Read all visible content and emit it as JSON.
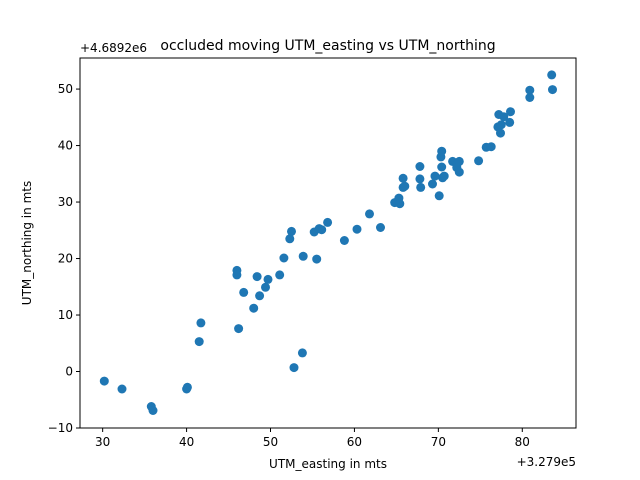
{
  "chart_data": {
    "type": "scatter",
    "title": "occluded moving UTM_easting vs UTM_northing",
    "xlabel": "UTM_easting in mts",
    "ylabel": "UTM_northing in mts",
    "x_offset_label": "+3.279e5",
    "y_offset_label": "+4.6892e6",
    "xlim": [
      27.3,
      86.4
    ],
    "ylim": [
      -10.0,
      55.5
    ],
    "x_ticks": [
      30,
      40,
      50,
      60,
      70,
      80
    ],
    "y_ticks": [
      -10,
      0,
      10,
      20,
      30,
      40,
      50
    ],
    "x_tick_labels": [
      "30",
      "40",
      "50",
      "60",
      "70",
      "80"
    ],
    "y_tick_labels": [
      "−10",
      "0",
      "10",
      "20",
      "30",
      "40",
      "50"
    ],
    "grid": false,
    "marker_color": "#1f77b4",
    "points": [
      [
        30.2,
        -1.7
      ],
      [
        32.3,
        -3.1
      ],
      [
        35.8,
        -6.2
      ],
      [
        36.0,
        -6.9
      ],
      [
        40.0,
        -3.1
      ],
      [
        40.1,
        -2.8
      ],
      [
        41.5,
        5.3
      ],
      [
        41.7,
        8.6
      ],
      [
        46.0,
        17.9
      ],
      [
        46.0,
        17.1
      ],
      [
        46.2,
        7.6
      ],
      [
        46.8,
        14.0
      ],
      [
        48.0,
        11.2
      ],
      [
        48.4,
        16.8
      ],
      [
        48.7,
        13.4
      ],
      [
        49.4,
        14.9
      ],
      [
        49.7,
        16.3
      ],
      [
        51.1,
        17.1
      ],
      [
        51.6,
        20.1
      ],
      [
        52.3,
        23.5
      ],
      [
        52.5,
        24.8
      ],
      [
        52.8,
        0.7
      ],
      [
        53.8,
        3.3
      ],
      [
        53.9,
        20.4
      ],
      [
        55.2,
        24.7
      ],
      [
        55.5,
        19.9
      ],
      [
        55.8,
        25.3
      ],
      [
        56.1,
        25.1
      ],
      [
        56.8,
        26.4
      ],
      [
        58.8,
        23.2
      ],
      [
        60.3,
        25.2
      ],
      [
        61.8,
        27.9
      ],
      [
        63.1,
        25.5
      ],
      [
        64.8,
        29.9
      ],
      [
        65.3,
        30.7
      ],
      [
        65.4,
        29.7
      ],
      [
        65.8,
        34.2
      ],
      [
        65.8,
        32.6
      ],
      [
        66.0,
        32.8
      ],
      [
        67.8,
        36.3
      ],
      [
        67.8,
        34.1
      ],
      [
        67.9,
        32.6
      ],
      [
        69.3,
        33.2
      ],
      [
        69.6,
        34.6
      ],
      [
        70.1,
        31.1
      ],
      [
        70.3,
        38.0
      ],
      [
        70.4,
        36.2
      ],
      [
        70.4,
        39.0
      ],
      [
        70.5,
        34.3
      ],
      [
        70.7,
        34.6
      ],
      [
        71.7,
        37.2
      ],
      [
        72.2,
        36.6
      ],
      [
        72.2,
        36.1
      ],
      [
        72.5,
        37.2
      ],
      [
        72.5,
        35.3
      ],
      [
        74.8,
        37.3
      ],
      [
        75.7,
        39.7
      ],
      [
        76.3,
        39.8
      ],
      [
        77.1,
        43.3
      ],
      [
        77.2,
        45.5
      ],
      [
        77.4,
        42.2
      ],
      [
        77.5,
        43.7
      ],
      [
        77.8,
        45.1
      ],
      [
        78.5,
        44.1
      ],
      [
        78.6,
        46.0
      ],
      [
        80.9,
        49.8
      ],
      [
        80.9,
        48.5
      ],
      [
        83.5,
        52.5
      ],
      [
        83.6,
        49.9
      ]
    ]
  }
}
